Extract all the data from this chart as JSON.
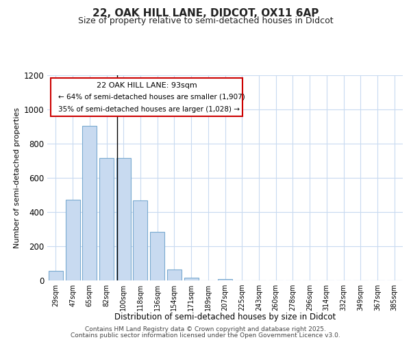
{
  "title_line1": "22, OAK HILL LANE, DIDCOT, OX11 6AP",
  "title_line2": "Size of property relative to semi-detached houses in Didcot",
  "xlabel": "Distribution of semi-detached houses by size in Didcot",
  "ylabel": "Number of semi-detached properties",
  "categories": [
    "29sqm",
    "47sqm",
    "65sqm",
    "82sqm",
    "100sqm",
    "118sqm",
    "136sqm",
    "154sqm",
    "171sqm",
    "189sqm",
    "207sqm",
    "225sqm",
    "243sqm",
    "260sqm",
    "278sqm",
    "296sqm",
    "314sqm",
    "332sqm",
    "349sqm",
    "367sqm",
    "385sqm"
  ],
  "values": [
    57,
    472,
    905,
    715,
    715,
    470,
    285,
    65,
    15,
    0,
    10,
    0,
    0,
    0,
    0,
    0,
    0,
    0,
    0,
    0,
    0
  ],
  "bar_color": "#c8daf0",
  "bar_edge_color": "#7aaad0",
  "property_label": "22 OAK HILL LANE: 93sqm",
  "smaller_pct": "64%",
  "smaller_count": "1,907",
  "larger_pct": "35%",
  "larger_count": "1,028",
  "vline_color": "#000000",
  "annotation_box_color": "#cc0000",
  "ylim": [
    0,
    1200
  ],
  "yticks": [
    0,
    200,
    400,
    600,
    800,
    1000,
    1200
  ],
  "bg_color": "#ffffff",
  "plot_bg_color": "#ffffff",
  "grid_color": "#c8daf0",
  "footer_line1": "Contains HM Land Registry data © Crown copyright and database right 2025.",
  "footer_line2": "Contains public sector information licensed under the Open Government Licence v3.0."
}
